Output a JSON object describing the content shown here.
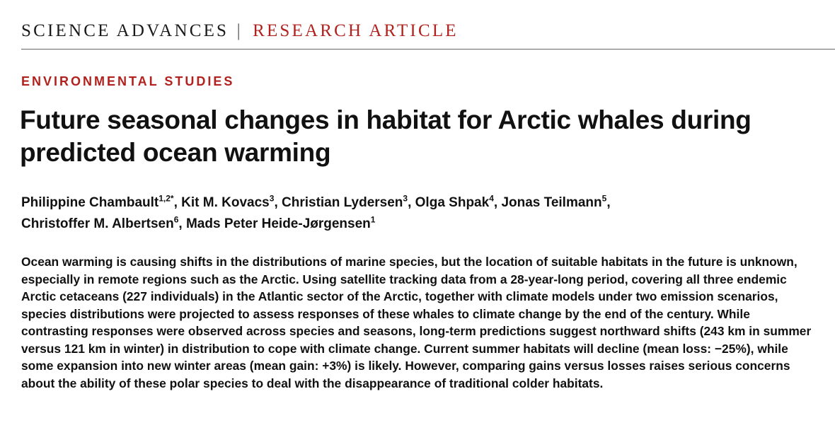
{
  "header": {
    "journal": "SCIENCE ADVANCES",
    "separator": "|",
    "article_type": "RESEARCH ARTICLE"
  },
  "section_label": "ENVIRONMENTAL STUDIES",
  "title": "Future seasonal changes in habitat for Arctic whales during predicted ocean warming",
  "authors": [
    {
      "name": "Philippine Chambault",
      "aff": "1,2*",
      "sep": ", "
    },
    {
      "name": "Kit M. Kovacs",
      "aff": "3",
      "sep": ", "
    },
    {
      "name": "Christian Lydersen",
      "aff": "3",
      "sep": ", "
    },
    {
      "name": "Olga Shpak",
      "aff": "4",
      "sep": ", "
    },
    {
      "name": "Jonas Teilmann",
      "aff": "5",
      "sep": ", "
    },
    {
      "name": "Christoffer M. Albertsen",
      "aff": "6",
      "sep": ", "
    },
    {
      "name": "Mads Peter Heide-Jørgensen",
      "aff": "1",
      "sep": ""
    }
  ],
  "abstract": "Ocean warming is causing shifts in the distributions of marine species, but the location of suitable habitats in the future is unknown, especially in remote regions such as the Arctic. Using satellite tracking data from a 28-year-long period, covering all three endemic Arctic cetaceans (227 individuals) in the Atlantic sector of the Arctic, together with climate models under two emission scenarios, species distributions were projected to assess responses of these whales to climate change by the end of the century. While contrasting responses were observed across species and seasons, long-term predictions suggest northward shifts (243 km in summer versus 121 km in winter) in distribution to cope with climate change. Current summer habitats will decline (mean loss: −25%), while some expansion into new winter areas (mean gain: +3%) is likely. However, comparing gains versus losses raises serious concerns about the ability of these polar species to deal with the disappearance of traditional colder habitats."
}
